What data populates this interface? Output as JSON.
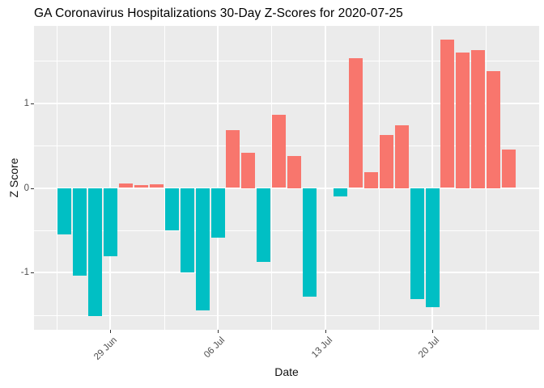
{
  "title": "GA Coronavirus Hospitalizations 30-Day Z-Scores for 2020-07-25",
  "colors": {
    "positive_bar": "#F8766D",
    "negative_bar": "#00BFC4",
    "panel_background": "#EBEBEB",
    "gridline": "#FFFFFF",
    "axis_text": "#4D4D4D",
    "tick_mark": "#333333",
    "title_text": "#000000"
  },
  "chart_data": {
    "type": "bar",
    "title": "GA Coronavirus Hospitalizations 30-Day Z-Scores for 2020-07-25",
    "xlabel": "Date",
    "ylabel": "Z Score",
    "ylim": [
      -1.673,
      1.913
    ],
    "grid": "on",
    "legend": "none",
    "y_major_ticks": [
      1,
      0,
      -1
    ],
    "y_tick_labels": [
      "1",
      "0",
      "-1"
    ],
    "y_minor_gridlines": [
      1.5,
      0.5,
      -0.5,
      -1.5
    ],
    "x_tick_labels": [
      "29 Jun",
      "06 Jul",
      "13 Jul",
      "20 Jul"
    ],
    "categories": [
      "26 Jun",
      "27 Jun",
      "28 Jun",
      "29 Jun",
      "30 Jun",
      "01 Jul",
      "02 Jul",
      "03 Jul",
      "04 Jul",
      "05 Jul",
      "06 Jul",
      "07 Jul",
      "08 Jul",
      "09 Jul",
      "10 Jul",
      "11 Jul",
      "12 Jul",
      "13 Jul",
      "14 Jul",
      "15 Jul",
      "16 Jul",
      "17 Jul",
      "18 Jul",
      "19 Jul",
      "20 Jul",
      "21 Jul",
      "22 Jul",
      "23 Jul",
      "24 Jul",
      "25 Jul"
    ],
    "values": [
      -0.54,
      -1.03,
      -1.51,
      -0.8,
      0.05,
      0.03,
      0.04,
      -0.5,
      -0.99,
      -1.44,
      -0.58,
      0.68,
      0.42,
      -0.87,
      0.86,
      0.38,
      -1.28,
      0.0,
      -0.1,
      1.53,
      0.19,
      0.63,
      0.74,
      -1.31,
      -1.4,
      1.75,
      1.6,
      1.63,
      1.38,
      0.45
    ],
    "positive_color": "#F8766D",
    "negative_color": "#00BFC4"
  }
}
